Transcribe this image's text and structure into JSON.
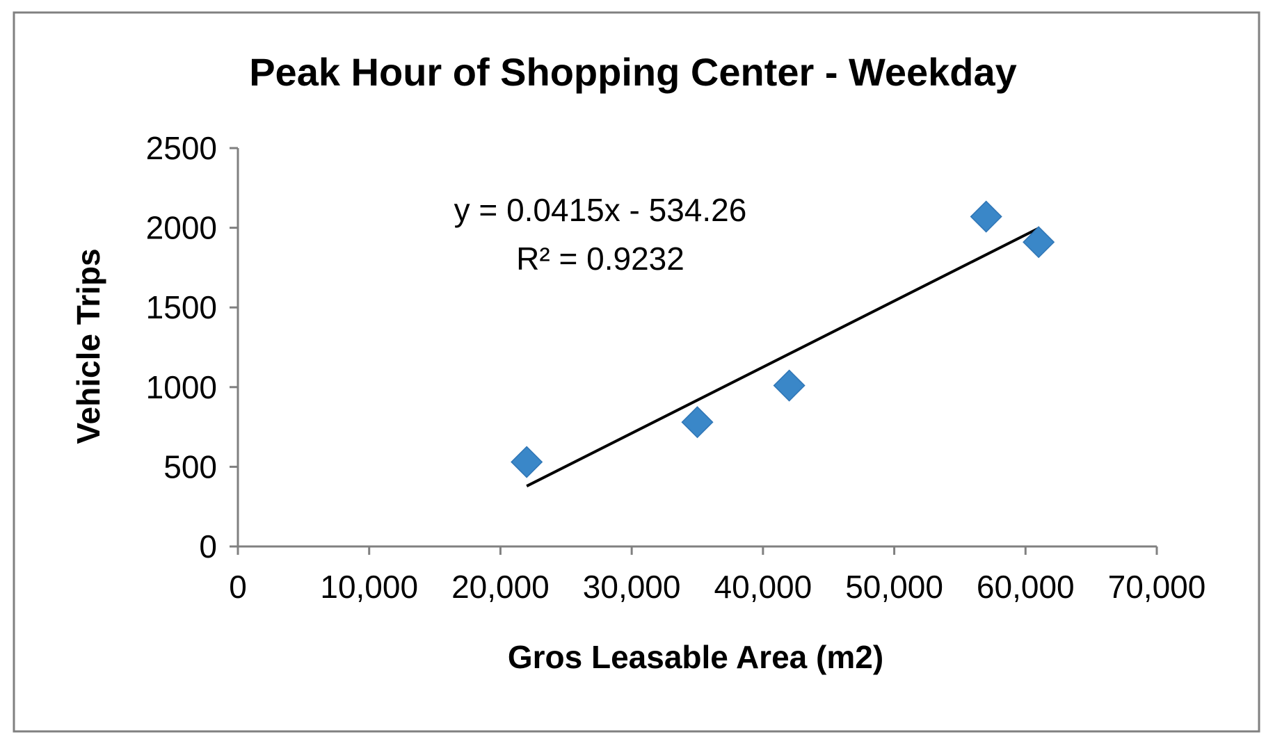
{
  "chart_data": {
    "type": "scatter",
    "title": "Peak Hour of Shopping Center - Weekday",
    "xlabel": "Gros Leasable Area (m2)",
    "ylabel": "Vehicle Trips",
    "xlim": [
      0,
      70000
    ],
    "ylim": [
      0,
      2500
    ],
    "x_ticks": [
      "0",
      "10,000",
      "20,000",
      "30,000",
      "40,000",
      "50,000",
      "60,000",
      "70,000"
    ],
    "y_ticks": [
      "0",
      "500",
      "1000",
      "1500",
      "2000",
      "2500"
    ],
    "grid": false,
    "legend": false,
    "marker_color": "#3a87c8",
    "trendline_color": "#000000",
    "series": [
      {
        "points": [
          {
            "x": 22000,
            "y": 530
          },
          {
            "x": 35000,
            "y": 780
          },
          {
            "x": 42000,
            "y": 1010
          },
          {
            "x": 57000,
            "y": 2070
          },
          {
            "x": 61000,
            "y": 1910
          }
        ]
      }
    ],
    "trendline": {
      "type": "linear",
      "slope": 0.0415,
      "intercept": -534.26,
      "x_start": 22000,
      "x_end": 61000,
      "equation_label": "y = 0.0415x - 534.26",
      "r2_label": "R² = 0.9232"
    }
  }
}
